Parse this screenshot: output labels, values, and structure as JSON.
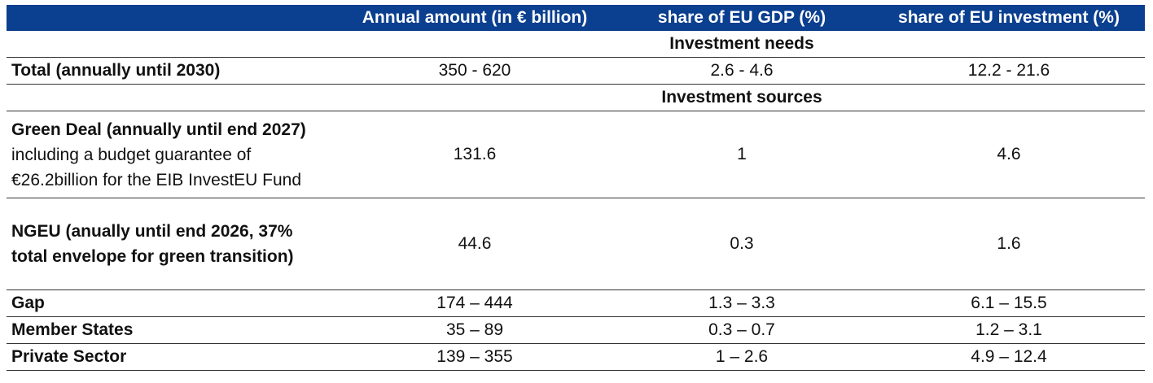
{
  "header": {
    "col0": "",
    "col1": "Annual amount (in € billion)",
    "col2": "share of EU GDP (%)",
    "col3": "share of EU investment (%)"
  },
  "sections": {
    "needs": "Investment needs",
    "sources": "Investment sources"
  },
  "rows": {
    "total": {
      "label": "Total (annually until 2030)",
      "amount": "350 - 620",
      "gdp": "2.6 - 4.6",
      "inv": "12.2 - 21.6"
    },
    "green": {
      "label_bold": "Green Deal (annually until end 2027)",
      "label_line2": "including a budget guarantee of",
      "label_line3": "€26.2billion for the EIB InvestEU Fund",
      "amount": "131.6",
      "gdp": "1",
      "inv": "4.6"
    },
    "ngeu": {
      "label_line1": "NGEU (anually until end 2026, 37%",
      "label_line2": "total envelope for green transition)",
      "amount": "44.6",
      "gdp": "0.3",
      "inv": "1.6"
    },
    "gap": {
      "label": "Gap",
      "amount": "174 – 444",
      "gdp": "1.3 – 3.3",
      "inv": "6.1 – 15.5"
    },
    "member": {
      "label": "Member States",
      "amount": "35 – 89",
      "gdp": "0.3 – 0.7",
      "inv": "1.2 – 3.1"
    },
    "private": {
      "label": "Private Sector",
      "amount": "139 – 355",
      "gdp": "1 – 2.6",
      "inv": "4.9 – 12.4"
    }
  },
  "colors": {
    "header_bg": "#0b3f8f",
    "header_text": "#ffffff"
  }
}
